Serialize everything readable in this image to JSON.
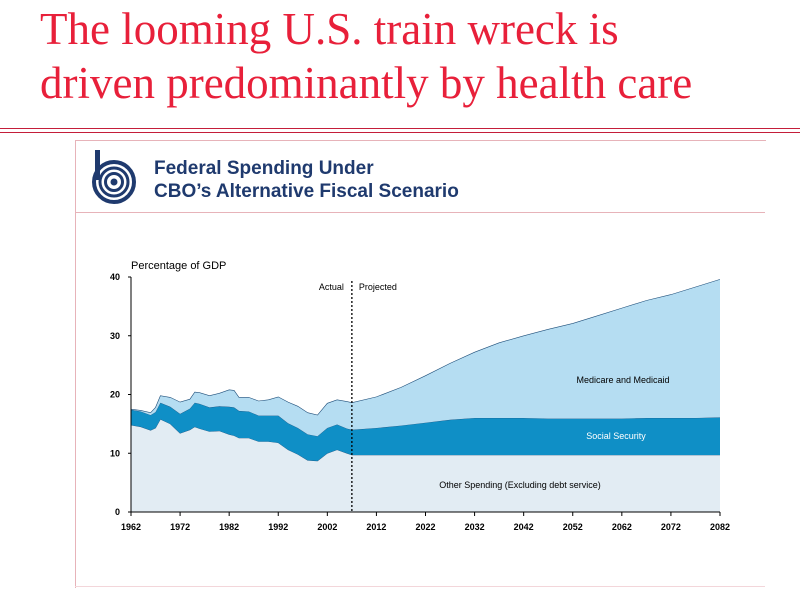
{
  "slide": {
    "title_line1": "The looming U.S. train wreck is",
    "title_line2": "driven predominantly by health care",
    "title_color": "#e8203a"
  },
  "chart_header": {
    "logo": "cbo-logo-icon",
    "title_line1": "Federal Spending Under",
    "title_line2": "CBO’s Alternative Fiscal Scenario",
    "title_color": "#1f3a6e"
  },
  "chart_data": {
    "type": "area",
    "stacked": true,
    "ylabel": "Percentage of GDP",
    "ylim": [
      0,
      40
    ],
    "yticks": [
      "0",
      "10",
      "20",
      "30",
      "40"
    ],
    "xlim": [
      1962,
      2082
    ],
    "xticks": [
      "1962",
      "1972",
      "1982",
      "1992",
      "2002",
      "2012",
      "2022",
      "2032",
      "2042",
      "2052",
      "2062",
      "2072",
      "2082"
    ],
    "divider": {
      "x": 2007,
      "left_label": "Actual",
      "right_label": "Projected"
    },
    "x": [
      1962,
      1964,
      1966,
      1967,
      1968,
      1970,
      1972,
      1974,
      1975,
      1976,
      1978,
      1980,
      1982,
      1983,
      1984,
      1986,
      1988,
      1990,
      1992,
      1994,
      1996,
      1998,
      2000,
      2002,
      2004,
      2006,
      2007,
      2012,
      2017,
      2022,
      2027,
      2032,
      2037,
      2042,
      2047,
      2052,
      2057,
      2062,
      2067,
      2072,
      2077,
      2082
    ],
    "series": [
      {
        "name": "Other Spending (Excluding debt service)",
        "color": "#e2ecf3",
        "values": [
          14.8,
          14.5,
          13.9,
          14.3,
          15.8,
          15.0,
          13.4,
          14.0,
          14.5,
          14.2,
          13.7,
          13.8,
          13.2,
          13.0,
          12.6,
          12.6,
          12.0,
          12.0,
          11.8,
          10.6,
          9.8,
          8.8,
          8.7,
          10.0,
          10.6,
          10.0,
          9.7,
          9.7,
          9.7,
          9.7,
          9.7,
          9.7,
          9.7,
          9.7,
          9.7,
          9.7,
          9.7,
          9.7,
          9.7,
          9.7,
          9.7,
          9.7
        ]
      },
      {
        "name": "Social Security",
        "color": "#0f8fc6",
        "values": [
          2.6,
          2.6,
          2.6,
          2.7,
          2.8,
          2.9,
          3.3,
          3.6,
          4.1,
          4.2,
          4.1,
          4.2,
          4.7,
          4.8,
          4.6,
          4.5,
          4.4,
          4.4,
          4.6,
          4.5,
          4.5,
          4.4,
          4.2,
          4.3,
          4.3,
          4.2,
          4.3,
          4.6,
          5.0,
          5.5,
          6.0,
          6.3,
          6.3,
          6.3,
          6.2,
          6.2,
          6.2,
          6.2,
          6.3,
          6.3,
          6.3,
          6.4
        ]
      },
      {
        "name": "Medicare and Medicaid",
        "color": "#b5ddf2",
        "values": [
          0.1,
          0.2,
          0.4,
          0.8,
          1.2,
          1.6,
          2.0,
          1.6,
          1.8,
          1.9,
          2.0,
          2.2,
          2.9,
          2.9,
          2.3,
          2.4,
          2.5,
          2.7,
          3.2,
          3.6,
          3.7,
          3.7,
          3.6,
          4.2,
          4.2,
          4.6,
          4.6,
          5.3,
          6.5,
          8.0,
          9.6,
          11.2,
          12.8,
          14.0,
          15.2,
          16.2,
          17.5,
          18.8,
          20.0,
          21.0,
          22.3,
          23.5
        ]
      }
    ],
    "annotations": [
      "Medicare and Medicaid",
      "Social Security",
      "Other Spending (Excluding debt service)"
    ]
  }
}
